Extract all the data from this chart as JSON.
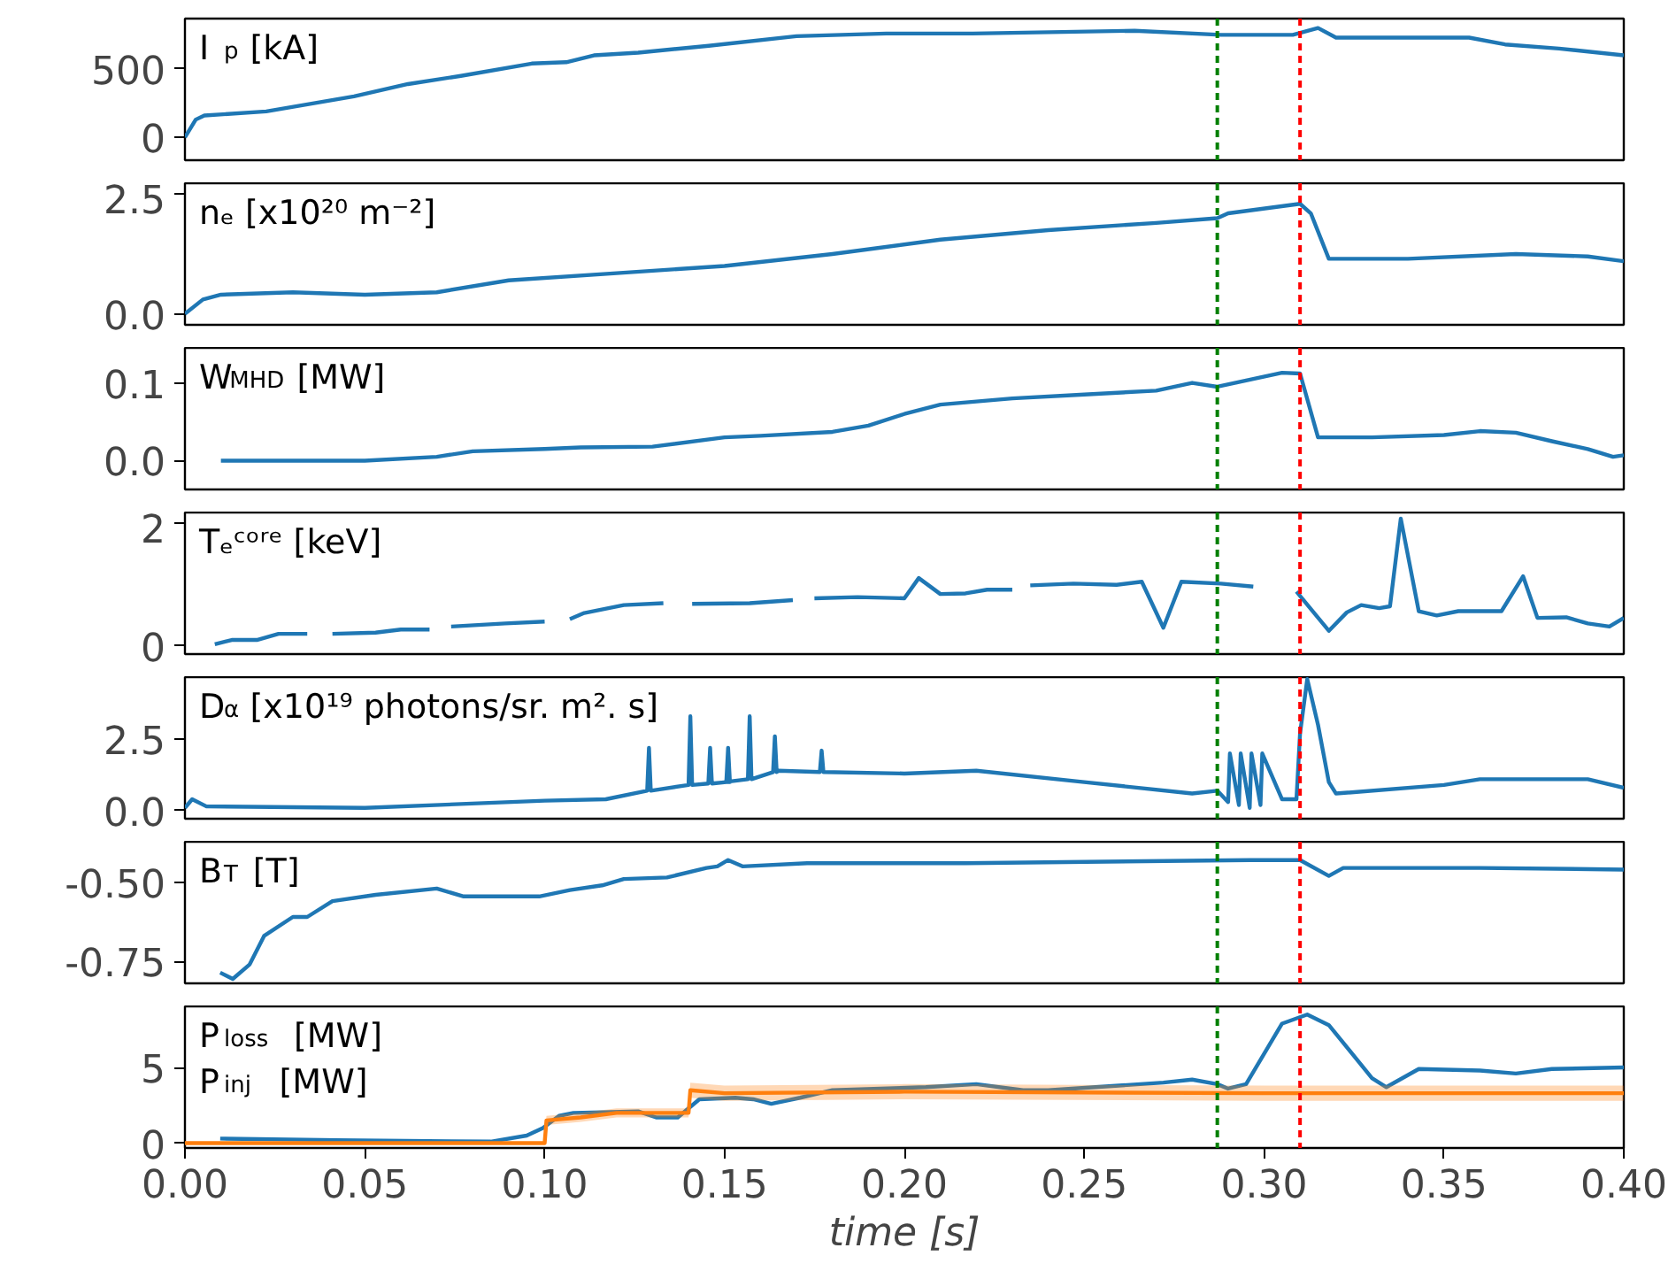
{
  "chart_data": [
    {
      "type": "line",
      "annotations": [
        "I$_{p}$ [kA]"
      ],
      "xlim": [
        0,
        0.4
      ],
      "ylim": [
        -167,
        869
      ],
      "yticks": [
        0,
        500
      ],
      "tick_labels": "y",
      "grid": false,
      "ref_lines": [
        {
          "axis": "x",
          "value": 0.287,
          "color": "#008000",
          "line_style": "dashed"
        },
        {
          "axis": "x",
          "value": 0.31,
          "color": "#ff0000",
          "line_style": "dashed"
        }
      ],
      "x": [
        0,
        0.003,
        0.0054,
        0.0226,
        0.047,
        0.062,
        0.0767,
        0.0964,
        0.106,
        0.1137,
        0.126,
        0.1456,
        0.17,
        0.195,
        0.219,
        0.264,
        0.288,
        0.308,
        0.315,
        0.32,
        0.342,
        0.357,
        0.367,
        0.382,
        0.4
      ],
      "series": [
        {
          "color": "#1f77b4",
          "values": [
            0,
            130,
            160,
            190,
            300,
            390,
            450,
            540,
            550,
            600,
            620,
            670,
            740,
            760,
            760,
            780,
            750,
            750,
            800,
            730,
            730,
            730,
            680,
            650,
            600
          ]
        }
      ]
    },
    {
      "type": "line",
      "annotations": [
        "nₑ [x10²⁰ m⁻²]"
      ],
      "xlim": [
        0,
        0.4
      ],
      "ylim": [
        -0.23,
        2.73
      ],
      "yticks": [
        {
          "value": 0,
          "label": "0.0"
        },
        2.5
      ],
      "tick_labels": "y",
      "grid": false,
      "ref_lines": [
        {
          "axis": "x",
          "value": 0.287,
          "color": "#008000",
          "line_style": "dashed"
        },
        {
          "axis": "x",
          "value": 0.31,
          "color": "#ff0000",
          "line_style": "dashed"
        }
      ],
      "x": [
        0,
        0.005,
        0.01,
        0.03,
        0.05,
        0.07,
        0.09,
        0.12,
        0.15,
        0.18,
        0.21,
        0.24,
        0.27,
        0.287,
        0.29,
        0.31,
        0.313,
        0.318,
        0.34,
        0.37,
        0.39,
        0.4
      ],
      "series": [
        {
          "color": "#1f77b4",
          "values": [
            0,
            0.3,
            0.4,
            0.45,
            0.4,
            0.45,
            0.7,
            0.85,
            1.0,
            1.25,
            1.55,
            1.75,
            1.9,
            2.0,
            2.1,
            2.3,
            2.1,
            1.15,
            1.15,
            1.25,
            1.2,
            1.1
          ]
        }
      ]
    },
    {
      "type": "line",
      "annotations": [
        "W$_{MHD}$ [MW]"
      ],
      "xlim": [
        0,
        0.4
      ],
      "ylim": [
        -0.037,
        0.145
      ],
      "yticks": [
        {
          "value": 0,
          "label": "0.0"
        },
        0.1
      ],
      "tick_labels": "y",
      "grid": false,
      "ref_lines": [
        {
          "axis": "x",
          "value": 0.287,
          "color": "#008000",
          "line_style": "dashed"
        },
        {
          "axis": "x",
          "value": 0.31,
          "color": "#ff0000",
          "line_style": "dashed"
        }
      ],
      "x": [
        0.01,
        0.05,
        0.07,
        0.08,
        0.1,
        0.11,
        0.13,
        0.15,
        0.16,
        0.18,
        0.19,
        0.2,
        0.21,
        0.23,
        0.25,
        0.27,
        0.28,
        0.287,
        0.295,
        0.305,
        0.31,
        0.315,
        0.33,
        0.35,
        0.36,
        0.37,
        0.38,
        0.39,
        0.397,
        0.4
      ],
      "series": [
        {
          "color": "#1f77b4",
          "values": [
            0,
            0,
            0.005,
            0.012,
            0.015,
            0.017,
            0.018,
            0.03,
            0.032,
            0.037,
            0.045,
            0.06,
            0.072,
            0.08,
            0.085,
            0.09,
            0.1,
            0.095,
            0.103,
            0.113,
            0.112,
            0.03,
            0.03,
            0.033,
            0.038,
            0.036,
            0.025,
            0.015,
            0.005,
            0.007
          ]
        }
      ]
    },
    {
      "type": "line",
      "annotations": [
        "Tₑᶜᵒʳᵉ [keV]"
      ],
      "xlim": [
        0,
        0.4
      ],
      "ylim": [
        -0.13,
        2.18
      ],
      "yticks": [
        0,
        2
      ],
      "tick_labels": "y",
      "grid": false,
      "ref_lines": [
        {
          "axis": "x",
          "value": 0.287,
          "color": "#008000",
          "line_style": "dashed"
        },
        {
          "axis": "x",
          "value": 0.31,
          "color": "#ff0000",
          "line_style": "dashed"
        }
      ],
      "x": [
        0.0083,
        0.013,
        0.02,
        0.026,
        0.034,
        0.037,
        0.041,
        0.053,
        0.06,
        0.068,
        0.071,
        0.074,
        0.089,
        0.1,
        0.103,
        0.107,
        0.111,
        0.122,
        0.133,
        0.137,
        0.141,
        0.157,
        0.169,
        0.172,
        0.175,
        0.187,
        0.2,
        0.204,
        0.21,
        0.217,
        0.223,
        0.23,
        0.232,
        0.235,
        0.247,
        0.259,
        0.266,
        0.272,
        0.277,
        0.288,
        0.297,
        0.303,
        0.309,
        0.318,
        0.323,
        0.327,
        0.332,
        0.335,
        0.338,
        0.343,
        0.348,
        0.354,
        0.366,
        0.372,
        0.376,
        0.384,
        0.39,
        0.396,
        0.4
      ],
      "series": [
        {
          "color": "#1f77b4",
          "values": [
            0.03,
            0.1,
            0.1,
            0.2,
            0.2,
            null,
            0.2,
            0.22,
            0.27,
            0.27,
            null,
            0.32,
            0.37,
            0.4,
            null,
            0.44,
            0.54,
            0.67,
            0.7,
            null,
            0.69,
            0.7,
            0.75,
            null,
            0.78,
            0.8,
            0.78,
            1.11,
            0.85,
            0.86,
            0.92,
            0.92,
            null,
            0.99,
            1.02,
            1.0,
            1.05,
            0.3,
            1.05,
            1.02,
            0.97,
            null,
            0.89,
            0.25,
            0.55,
            0.67,
            0.62,
            0.65,
            2.08,
            0.57,
            0.5,
            0.57,
            0.57,
            1.14,
            0.46,
            0.47,
            0.37,
            0.32,
            0.46
          ]
        }
      ]
    },
    {
      "type": "line",
      "annotations": [
        "D$_{α}$ [x10¹⁹ photons/sr. m². s]"
      ],
      "xlim": [
        0,
        0.4
      ],
      "ylim": [
        -0.28,
        4.67
      ],
      "yticks": [
        {
          "value": 0,
          "label": "0.0"
        },
        2.5
      ],
      "tick_labels": "y",
      "grid": false,
      "ref_lines": [
        {
          "axis": "x",
          "value": 0.287,
          "color": "#008000",
          "line_style": "dashed"
        },
        {
          "axis": "x",
          "value": 0.31,
          "color": "#ff0000",
          "line_style": "dashed"
        }
      ],
      "x": [
        0,
        0.002,
        0.006,
        0.05,
        0.1,
        0.117,
        0.1285,
        0.129,
        0.1295,
        0.14,
        0.1405,
        0.141,
        0.1455,
        0.146,
        0.1465,
        0.1505,
        0.151,
        0.1515,
        0.15,
        0.1565,
        0.157,
        0.1575,
        0.1635,
        0.164,
        0.1645,
        0.165,
        0.1765,
        0.177,
        0.1775,
        0.2,
        0.22,
        0.25,
        0.28,
        0.287,
        0.29,
        0.2905,
        0.293,
        0.2935,
        0.296,
        0.2965,
        0.299,
        0.2995,
        0.305,
        0.309,
        0.31,
        0.312,
        0.315,
        0.318,
        0.32,
        0.35,
        0.36,
        0.39,
        0.4
      ],
      "series": [
        {
          "color": "#1f77b4",
          "values": [
            0.1,
            0.4,
            0.15,
            0.1,
            0.35,
            0.4,
            0.7,
            2.2,
            0.7,
            0.9,
            3.3,
            0.9,
            0.95,
            2.2,
            0.95,
            1.0,
            2.2,
            1.0,
            1.0,
            1.1,
            3.3,
            1.1,
            1.35,
            2.6,
            1.35,
            1.4,
            1.35,
            2.1,
            1.35,
            1.3,
            1.4,
            1.0,
            0.6,
            0.7,
            0.3,
            2.0,
            0.2,
            2.0,
            0.1,
            2.0,
            0.2,
            2.0,
            0.4,
            0.4,
            2.7,
            4.6,
            3.0,
            1.0,
            0.6,
            0.9,
            1.1,
            1.1,
            0.8
          ]
        }
      ]
    },
    {
      "type": "line",
      "annotations": [
        "B$_{T}$ [T]"
      ],
      "xlim": [
        0,
        0.4
      ],
      "ylim": [
        -0.82,
        -0.372
      ],
      "yticks": [
        {
          "value": -0.75,
          "label": "-0.75"
        },
        {
          "value": -0.5,
          "label": "-0.50"
        }
      ],
      "tick_labels": "y",
      "grid": false,
      "ref_lines": [
        {
          "axis": "x",
          "value": 0.287,
          "color": "#008000",
          "line_style": "dashed"
        },
        {
          "axis": "x",
          "value": 0.31,
          "color": "#ff0000",
          "line_style": "dashed"
        }
      ],
      "x": [
        0.0098,
        0.0133,
        0.018,
        0.022,
        0.03,
        0.034,
        0.041,
        0.053,
        0.07,
        0.0775,
        0.0985,
        0.107,
        0.116,
        0.122,
        0.134,
        0.145,
        0.148,
        0.151,
        0.155,
        0.173,
        0.217,
        0.296,
        0.31,
        0.318,
        0.322,
        0.36,
        0.4
      ],
      "series": [
        {
          "color": "#1f77b4",
          "values": [
            -0.786,
            -0.806,
            -0.76,
            -0.67,
            -0.61,
            -0.61,
            -0.56,
            -0.54,
            -0.52,
            -0.545,
            -0.545,
            -0.525,
            -0.51,
            -0.49,
            -0.485,
            -0.455,
            -0.45,
            -0.43,
            -0.45,
            -0.44,
            -0.44,
            -0.43,
            -0.43,
            -0.48,
            -0.455,
            -0.455,
            -0.46
          ]
        }
      ]
    },
    {
      "type": "line",
      "annotations": [
        "P$_{loss}$ [MW]",
        "P$_{inj}$ [MW]"
      ],
      "xlabel": "time [s]",
      "xlim": [
        0,
        0.4
      ],
      "ylim": [
        -0.32,
        9.04
      ],
      "yticks": [
        0,
        5
      ],
      "xticks": [
        {
          "value": 0,
          "label": "0.00"
        },
        0.05,
        {
          "value": 0.1,
          "label": "0.10"
        },
        0.15,
        {
          "value": 0.2,
          "label": "0.20"
        },
        0.25,
        {
          "value": 0.3,
          "label": "0.30"
        },
        0.35,
        {
          "value": 0.4,
          "label": "0.40"
        }
      ],
      "grid": false,
      "ref_lines": [
        {
          "axis": "x",
          "value": 0.287,
          "color": "#008000",
          "line_style": "dashed"
        },
        {
          "axis": "x",
          "value": 0.31,
          "color": "#ff0000",
          "line_style": "dashed"
        }
      ],
      "series": [
        {
          "color": "#1f77b4",
          "x": [
            0.0098,
            0.042,
            0.085,
            0.095,
            0.0995,
            0.104,
            0.108,
            0.126,
            0.131,
            0.137,
            0.143,
            0.153,
            0.158,
            0.163,
            0.171,
            0.18,
            0.206,
            0.22,
            0.233,
            0.24,
            0.272,
            0.28,
            0.287,
            0.29,
            0.295,
            0.305,
            0.312,
            0.318,
            0.33,
            0.334,
            0.343,
            0.36,
            0.37,
            0.38,
            0.4
          ],
          "values": [
            0.3,
            0.2,
            0.1,
            0.5,
            1.0,
            1.8,
            2.0,
            2.1,
            1.7,
            1.7,
            2.9,
            3.0,
            2.9,
            2.6,
            3.0,
            3.5,
            3.7,
            3.9,
            3.5,
            3.5,
            4.0,
            4.2,
            3.9,
            3.6,
            3.9,
            7.9,
            8.5,
            7.8,
            4.3,
            3.7,
            4.9,
            4.8,
            4.6,
            4.9,
            5.0
          ]
        },
        {
          "color": "#ff7f0e",
          "x": [
            0,
            0.1,
            0.1005,
            0.11,
            0.12,
            0.13,
            0.14,
            0.1405,
            0.15,
            0.2,
            0.3,
            0.4
          ],
          "values": [
            0,
            0,
            1.5,
            1.7,
            2.0,
            2.0,
            2.0,
            3.5,
            3.3,
            3.4,
            3.3,
            3.3
          ],
          "lower": [
            0,
            0,
            1.2,
            1.4,
            1.7,
            1.7,
            1.7,
            3.0,
            2.8,
            2.9,
            2.8,
            2.8
          ],
          "upper": [
            0,
            0,
            1.8,
            2.0,
            2.3,
            2.3,
            2.3,
            4.0,
            3.8,
            3.9,
            3.8,
            3.8
          ]
        }
      ]
    }
  ]
}
